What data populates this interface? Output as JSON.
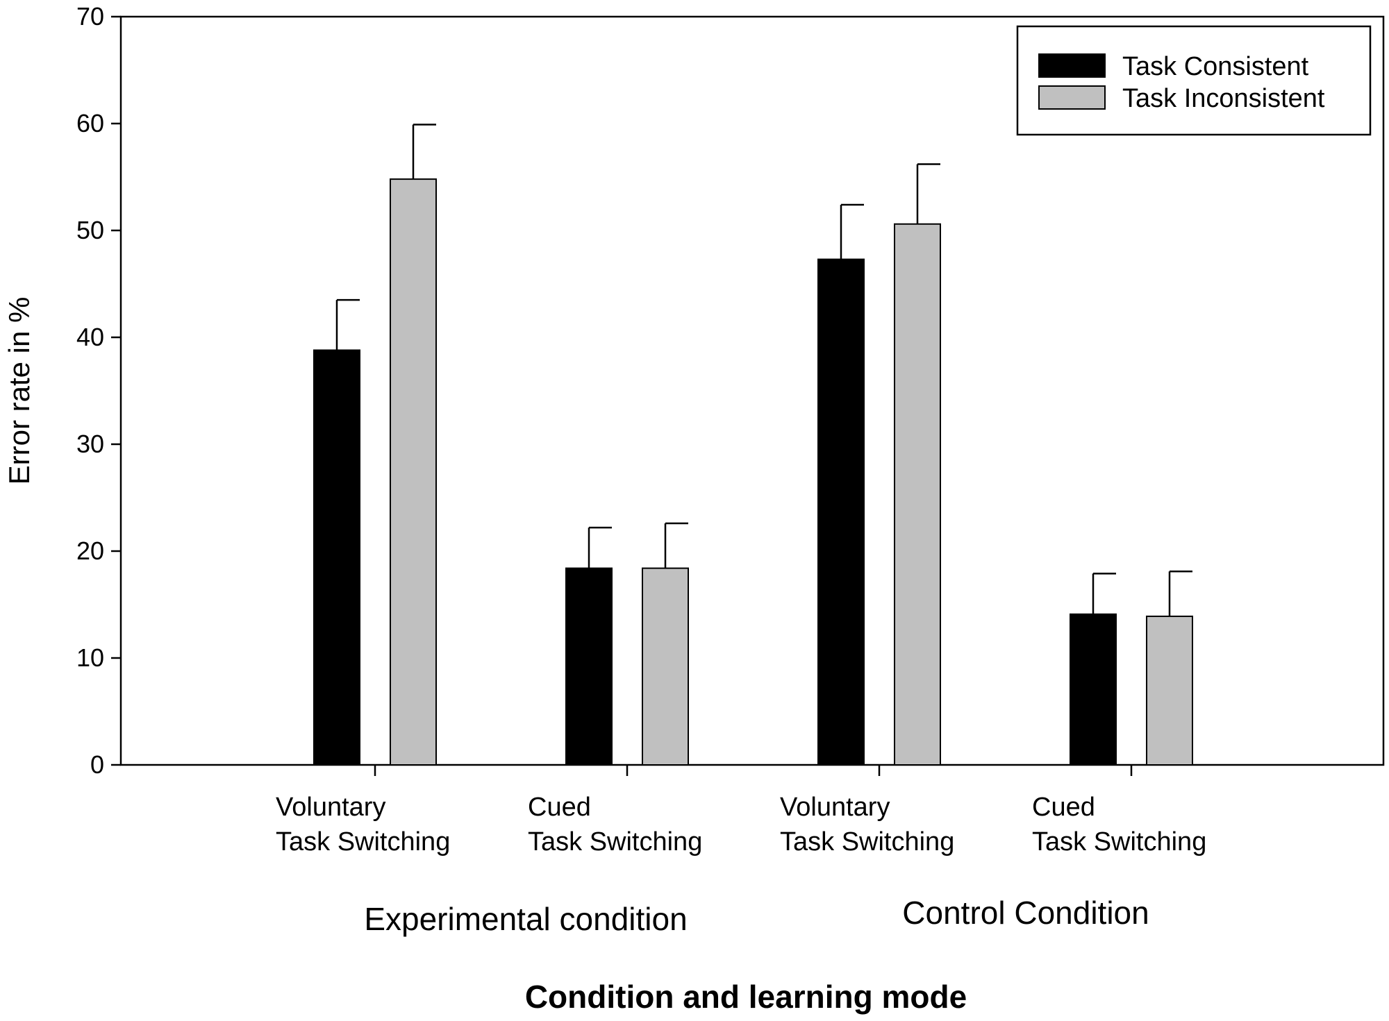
{
  "chart_data": {
    "type": "bar",
    "title": "",
    "xlabel": "Condition and learning mode",
    "ylabel": "Error rate in %",
    "ylim": [
      0,
      70
    ],
    "yticks": [
      0,
      10,
      20,
      30,
      40,
      50,
      60,
      70
    ],
    "grid": false,
    "legend_position": "top-right",
    "categories": [
      [
        "Voluntary",
        "Task Switching"
      ],
      [
        "Cued",
        "Task Switching"
      ],
      [
        "Voluntary",
        "Task Switching"
      ],
      [
        "Cued",
        "Task Switching"
      ]
    ],
    "groups": [
      "Experimental condition",
      "Control Condition"
    ],
    "series": [
      {
        "name": "Task Consistent",
        "color": "#000000",
        "values": [
          38.8,
          18.4,
          47.3,
          14.1
        ],
        "errors": [
          4.7,
          3.8,
          5.1,
          3.8
        ]
      },
      {
        "name": "Task Inconsistent",
        "color": "#c0c0c0",
        "values": [
          54.8,
          18.4,
          50.6,
          13.9
        ],
        "errors": [
          5.1,
          4.2,
          5.6,
          4.2
        ]
      }
    ]
  }
}
